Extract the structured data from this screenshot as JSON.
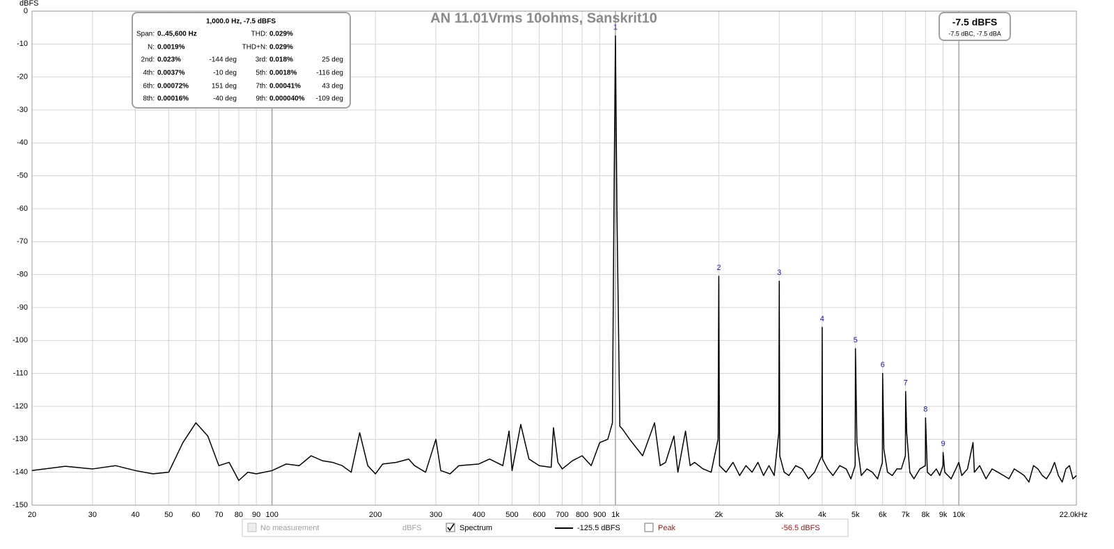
{
  "chart_data": {
    "type": "line",
    "title": "AN 11.01Vrms 10ohms, Sanskrit10",
    "y_label": "dBFS",
    "x_scale": "log",
    "grid": true,
    "xlim": [
      20,
      22000
    ],
    "ylim": [
      -150,
      0
    ],
    "xticks": [
      20,
      30,
      40,
      50,
      60,
      70,
      80,
      90,
      100,
      200,
      300,
      400,
      500,
      600,
      700,
      800,
      900,
      {
        "value": 1000,
        "label": "1k"
      },
      {
        "value": 2000,
        "label": "2k"
      },
      {
        "value": 3000,
        "label": "3k"
      },
      {
        "value": 4000,
        "label": "4k"
      },
      {
        "value": 5000,
        "label": "5k"
      },
      {
        "value": 6000,
        "label": "6k"
      },
      {
        "value": 7000,
        "label": "7k"
      },
      {
        "value": 8000,
        "label": "8k"
      },
      {
        "value": 9000,
        "label": "9k"
      },
      {
        "value": 10000,
        "label": "10k"
      },
      {
        "value": 22000,
        "label": "22.0kHz"
      }
    ],
    "yticks": [
      0,
      -10,
      -20,
      -30,
      -40,
      -50,
      -60,
      -70,
      -80,
      -90,
      -100,
      -110,
      -120,
      -130,
      -140,
      -150
    ],
    "series": [
      {
        "name": "Spectrum",
        "color": "#000000",
        "x": [
          20,
          25,
          30,
          35,
          40,
          45,
          50,
          55,
          60,
          65,
          70,
          75,
          80,
          85,
          90,
          100,
          110,
          120,
          130,
          140,
          150,
          160,
          170,
          180,
          190,
          200,
          210,
          230,
          250,
          260,
          280,
          300,
          310,
          330,
          350,
          400,
          430,
          470,
          490,
          500,
          530,
          560,
          600,
          650,
          660,
          680,
          700,
          750,
          800,
          850,
          900,
          950,
          980,
          990,
          1000,
          1010,
          1030,
          1050,
          1100,
          1200,
          1300,
          1350,
          1400,
          1480,
          1520,
          1600,
          1650,
          1700,
          1800,
          1900,
          1990,
          2000,
          2010,
          2100,
          2200,
          2300,
          2400,
          2500,
          2600,
          2700,
          2800,
          2900,
          2990,
          3000,
          3010,
          3100,
          3200,
          3350,
          3500,
          3650,
          3800,
          3990,
          4000,
          4010,
          4150,
          4300,
          4500,
          4700,
          4850,
          4990,
          5000,
          5050,
          5200,
          5400,
          5600,
          5800,
          5990,
          6000,
          6050,
          6200,
          6400,
          6600,
          6800,
          6990,
          7000,
          7050,
          7200,
          7400,
          7700,
          7990,
          8000,
          8100,
          8300,
          8600,
          8800,
          8990,
          9000,
          9100,
          9500,
          9800,
          10000,
          10200,
          10600,
          11000,
          11100,
          11500,
          12000,
          12500,
          13000,
          13500,
          14000,
          14500,
          15000,
          15500,
          16000,
          16500,
          17000,
          17500,
          18000,
          18500,
          19000,
          19500,
          20000,
          20500,
          21000,
          21500,
          22000
        ],
        "values": [
          -139.5,
          -138.2,
          -139,
          -138,
          -139.5,
          -140.5,
          -140,
          -131,
          -125,
          -129,
          -138,
          -137,
          -142.5,
          -140,
          -140.5,
          -139.5,
          -137.5,
          -138,
          -135,
          -136.5,
          -137,
          -138,
          -140,
          -128,
          -138,
          -140.5,
          -137.5,
          -137,
          -136,
          -138,
          -140,
          -130,
          -139.5,
          -140.5,
          -138,
          -137.5,
          -136,
          -138,
          -127.5,
          -139.5,
          -125.5,
          -136,
          -138,
          -138.5,
          -126.5,
          -137,
          -139,
          -136.5,
          -135,
          -138,
          -131,
          -130,
          -125,
          -60,
          -7.5,
          -60,
          -126,
          -127,
          -130,
          -135,
          -125,
          -138,
          -137,
          -129,
          -140,
          -127.5,
          -138,
          -137,
          -139,
          -140,
          -130,
          -80.5,
          -138,
          -140,
          -137,
          -141,
          -138,
          -140,
          -137,
          -141,
          -138,
          -141,
          -128,
          -82,
          -135,
          -140,
          -141,
          -138,
          -139,
          -142,
          -140,
          -135,
          -96,
          -136,
          -139,
          -141,
          -138,
          -139,
          -142,
          -138,
          -102.5,
          -131,
          -141,
          -139,
          -140,
          -142,
          -137,
          -110,
          -133,
          -140,
          -141,
          -139,
          -139,
          -135,
          -115.5,
          -128,
          -140,
          -142,
          -139,
          -138,
          -123.5,
          -140,
          -141,
          -139,
          -141,
          -138,
          -134,
          -140,
          -142,
          -139,
          -137,
          -141,
          -139,
          -131,
          -140,
          -138,
          -142,
          -139,
          -140,
          -141,
          -142,
          -139,
          -140,
          -141,
          -143,
          -138,
          -139,
          -141,
          -142,
          -140,
          -137,
          -141,
          -143,
          -139,
          -138,
          -142,
          -141
        ]
      }
    ],
    "harmonics": {
      "labels": [
        "1",
        "2",
        "3",
        "4",
        "5",
        "6",
        "7",
        "8",
        "9"
      ],
      "x": [
        1000,
        2000,
        3000,
        4000,
        5000,
        6000,
        7000,
        8000,
        9000
      ],
      "values": [
        -7.5,
        -80.5,
        -82,
        -96,
        -102.5,
        -110,
        -115.5,
        -123.5,
        -134
      ]
    }
  },
  "info_box": {
    "header": "1,000.0 Hz, -7.5 dBFS",
    "rows": [
      {
        "left": {
          "label": "Span:",
          "value": "0..45,600 Hz"
        },
        "right": {
          "label": "THD:",
          "value": "0.029%"
        }
      },
      {
        "left": {
          "label": "N:",
          "value": "0.0019%"
        },
        "right": {
          "label": "THD+N:",
          "value": "0.029%"
        }
      },
      {
        "left": {
          "label": "2nd:",
          "value": "0.023%",
          "phase": "-144 deg"
        },
        "right": {
          "label": "3rd:",
          "value": "0.018%",
          "phase": "25 deg"
        }
      },
      {
        "left": {
          "label": "4th:",
          "value": "0.0037%",
          "phase": "-10 deg"
        },
        "right": {
          "label": "5th:",
          "value": "0.0018%",
          "phase": "-116 deg"
        }
      },
      {
        "left": {
          "label": "6th:",
          "value": "0.00072%",
          "phase": "151 deg"
        },
        "right": {
          "label": "7th:",
          "value": "0.00041%",
          "phase": "43 deg"
        }
      },
      {
        "left": {
          "label": "8th:",
          "value": "0.00016%",
          "phase": "-40 deg"
        },
        "right": {
          "label": "9th:",
          "value": "0.000040%",
          "phase": "-109 deg"
        }
      }
    ]
  },
  "level_box": {
    "main": "-7.5 dBFS",
    "sub": "-7.5 dBC, -7.5 dBA"
  },
  "legend_bar": {
    "no_measurement": "No measurement",
    "no_measurement_unit": "dBFS",
    "spectrum_level": "-125.5 dBFS",
    "peak": "Peak",
    "peak_level": "-56.5 dBFS"
  }
}
